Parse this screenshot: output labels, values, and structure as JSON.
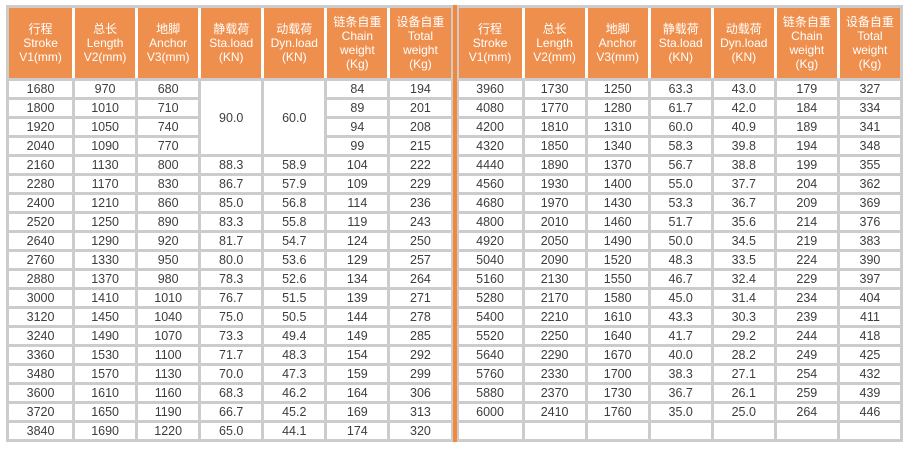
{
  "colors": {
    "header_bg": "#ef8f4e",
    "header_text": "#ffffff",
    "divider": "#f3873a",
    "gap": "#cccccc",
    "cell_bg": "#ffffff",
    "cell_text": "#3d3d3d"
  },
  "columns": [
    {
      "id": "stroke",
      "lines": [
        "行程",
        "Stroke",
        "V1(mm)"
      ]
    },
    {
      "id": "length",
      "lines": [
        "总长",
        "Length",
        "V2(mm)"
      ]
    },
    {
      "id": "anchor",
      "lines": [
        "地脚",
        "Anchor",
        "V3(mm)"
      ]
    },
    {
      "id": "static-load",
      "lines": [
        "静载荷",
        "Sta.load",
        "(KN)"
      ]
    },
    {
      "id": "dynamic-load",
      "lines": [
        "动载荷",
        "Dyn.load",
        "(KN)"
      ]
    },
    {
      "id": "chain-weight",
      "lines": [
        "链条自重",
        "Chain",
        "weight",
        "(Kg)"
      ]
    },
    {
      "id": "total-weight",
      "lines": [
        "设备自重",
        "Total",
        "weight",
        "(Kg)"
      ]
    }
  ],
  "left_table": {
    "merged": [
      {
        "row": 0,
        "col": 3,
        "rowspan": 4,
        "value": "90.0"
      },
      {
        "row": 0,
        "col": 4,
        "rowspan": 4,
        "value": "60.0"
      }
    ],
    "rows": [
      [
        "1680",
        "970",
        "680",
        null,
        null,
        "84",
        "194"
      ],
      [
        "1800",
        "1010",
        "710",
        null,
        null,
        "89",
        "201"
      ],
      [
        "1920",
        "1050",
        "740",
        null,
        null,
        "94",
        "208"
      ],
      [
        "2040",
        "1090",
        "770",
        null,
        null,
        "99",
        "215"
      ],
      [
        "2160",
        "1130",
        "800",
        "88.3",
        "58.9",
        "104",
        "222"
      ],
      [
        "2280",
        "1170",
        "830",
        "86.7",
        "57.9",
        "109",
        "229"
      ],
      [
        "2400",
        "1210",
        "860",
        "85.0",
        "56.8",
        "114",
        "236"
      ],
      [
        "2520",
        "1250",
        "890",
        "83.3",
        "55.8",
        "119",
        "243"
      ],
      [
        "2640",
        "1290",
        "920",
        "81.7",
        "54.7",
        "124",
        "250"
      ],
      [
        "2760",
        "1330",
        "950",
        "80.0",
        "53.6",
        "129",
        "257"
      ],
      [
        "2880",
        "1370",
        "980",
        "78.3",
        "52.6",
        "134",
        "264"
      ],
      [
        "3000",
        "1410",
        "1010",
        "76.7",
        "51.5",
        "139",
        "271"
      ],
      [
        "3120",
        "1450",
        "1040",
        "75.0",
        "50.5",
        "144",
        "278"
      ],
      [
        "3240",
        "1490",
        "1070",
        "73.3",
        "49.4",
        "149",
        "285"
      ],
      [
        "3360",
        "1530",
        "1100",
        "71.7",
        "48.3",
        "154",
        "292"
      ],
      [
        "3480",
        "1570",
        "1130",
        "70.0",
        "47.3",
        "159",
        "299"
      ],
      [
        "3600",
        "1610",
        "1160",
        "68.3",
        "46.2",
        "164",
        "306"
      ],
      [
        "3720",
        "1650",
        "1190",
        "66.7",
        "45.2",
        "169",
        "313"
      ],
      [
        "3840",
        "1690",
        "1220",
        "65.0",
        "44.1",
        "174",
        "320"
      ]
    ]
  },
  "right_table": {
    "merged": [],
    "rows": [
      [
        "3960",
        "1730",
        "1250",
        "63.3",
        "43.0",
        "179",
        "327"
      ],
      [
        "4080",
        "1770",
        "1280",
        "61.7",
        "42.0",
        "184",
        "334"
      ],
      [
        "4200",
        "1810",
        "1310",
        "60.0",
        "40.9",
        "189",
        "341"
      ],
      [
        "4320",
        "1850",
        "1340",
        "58.3",
        "39.8",
        "194",
        "348"
      ],
      [
        "4440",
        "1890",
        "1370",
        "56.7",
        "38.8",
        "199",
        "355"
      ],
      [
        "4560",
        "1930",
        "1400",
        "55.0",
        "37.7",
        "204",
        "362"
      ],
      [
        "4680",
        "1970",
        "1430",
        "53.3",
        "36.7",
        "209",
        "369"
      ],
      [
        "4800",
        "2010",
        "1460",
        "51.7",
        "35.6",
        "214",
        "376"
      ],
      [
        "4920",
        "2050",
        "1490",
        "50.0",
        "34.5",
        "219",
        "383"
      ],
      [
        "5040",
        "2090",
        "1520",
        "48.3",
        "33.5",
        "224",
        "390"
      ],
      [
        "5160",
        "2130",
        "1550",
        "46.7",
        "32.4",
        "229",
        "397"
      ],
      [
        "5280",
        "2170",
        "1580",
        "45.0",
        "31.4",
        "234",
        "404"
      ],
      [
        "5400",
        "2210",
        "1610",
        "43.3",
        "30.3",
        "239",
        "411"
      ],
      [
        "5520",
        "2250",
        "1640",
        "41.7",
        "29.2",
        "244",
        "418"
      ],
      [
        "5640",
        "2290",
        "1670",
        "40.0",
        "28.2",
        "249",
        "425"
      ],
      [
        "5760",
        "2330",
        "1700",
        "38.3",
        "27.1",
        "254",
        "432"
      ],
      [
        "5880",
        "2370",
        "1730",
        "36.7",
        "26.1",
        "259",
        "439"
      ],
      [
        "6000",
        "2410",
        "1760",
        "35.0",
        "25.0",
        "264",
        "446"
      ],
      [
        "",
        "",
        "",
        "",
        "",
        "",
        ""
      ]
    ]
  }
}
